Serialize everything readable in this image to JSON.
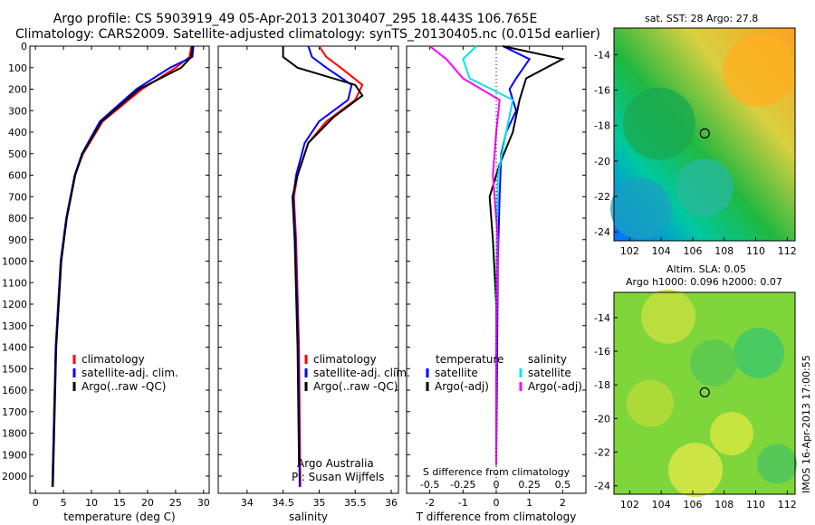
{
  "title_line1": "Argo profile: CS 5903919_49 05-Apr-2013 20130407_295 18.443S 106.765E",
  "title_line2": "Climatology: CARS2009. Satellite-adjusted climatology: synTS_20130405.nc (0.015d earlier)",
  "sst_title": "sat. SST: 28 Argo: 27.8",
  "sla_title1": "Altim. SLA: 0.05",
  "sla_title2": "Argo h1000: 0.096 h2000: 0.07",
  "footer_stamp": "IMOS 16-Apr-2013 17:00:55",
  "credit1": "Argo Australia",
  "credit2": "PI: Susan Wijffels",
  "colors": {
    "clim": "#ff0000",
    "sat": "#0000ff",
    "argo": "#000000",
    "sal_sat": "#00e5e5",
    "sal_argo": "#ff00ff"
  },
  "chart_data": [
    {
      "type": "line",
      "xlabel": "temperature (deg C)",
      "ylabel": "",
      "xlim": [
        -1,
        31
      ],
      "ylim": [
        2080,
        0
      ],
      "xticks": [
        0,
        5,
        10,
        15,
        20,
        25,
        30
      ],
      "yticks": [
        0,
        100,
        200,
        300,
        400,
        500,
        600,
        700,
        800,
        900,
        1000,
        1100,
        1200,
        1300,
        1400,
        1500,
        1600,
        1700,
        1800,
        1900,
        2000
      ],
      "series": [
        {
          "name": "climatology",
          "color": "#ff0000",
          "x": [
            27.8,
            27.5,
            25,
            19,
            12,
            8.5,
            7,
            5.5,
            4.5,
            3.6,
            3
          ],
          "y": [
            0,
            50,
            100,
            200,
            350,
            500,
            600,
            800,
            1000,
            1400,
            2050
          ]
        },
        {
          "name": "satellite-adj. clim.",
          "color": "#0000ff",
          "x": [
            28.2,
            28,
            24,
            18,
            11.5,
            8.3,
            7,
            5.5,
            4.5,
            3.6,
            3
          ],
          "y": [
            0,
            50,
            100,
            200,
            350,
            500,
            600,
            800,
            1000,
            1400,
            2050
          ]
        },
        {
          "name": "Argo(..raw -QC)",
          "color": "#000000",
          "x": [
            28,
            27.8,
            26,
            18.5,
            11.8,
            8.4,
            7.1,
            5.6,
            4.6,
            3.7,
            3.1
          ],
          "y": [
            0,
            50,
            100,
            200,
            350,
            500,
            600,
            800,
            1000,
            1400,
            2050
          ]
        }
      ],
      "legend": [
        "climatology",
        "satellite-adj. clim.",
        "Argo(..raw -QC)"
      ]
    },
    {
      "type": "line",
      "xlabel": "salinity",
      "ylabel": "",
      "xlim": [
        33.6,
        36.1
      ],
      "ylim": [
        2080,
        0
      ],
      "xticks": [
        34,
        34.5,
        35,
        35.5,
        36
      ],
      "series": [
        {
          "name": "climatology",
          "color": "#ff0000",
          "x": [
            35,
            35.1,
            35.3,
            35.6,
            35.5,
            35.1,
            34.85,
            34.7,
            34.65,
            34.68,
            34.72,
            34.74
          ],
          "y": [
            0,
            50,
            100,
            180,
            250,
            350,
            450,
            600,
            700,
            900,
            1400,
            2050
          ]
        },
        {
          "name": "satellite-adj. clim.",
          "color": "#0000ff",
          "x": [
            34.85,
            34.9,
            35.1,
            35.45,
            35.4,
            35.0,
            34.8,
            34.68,
            34.64,
            34.67,
            34.71,
            34.73
          ],
          "y": [
            0,
            50,
            100,
            180,
            250,
            350,
            450,
            600,
            700,
            900,
            1400,
            2050
          ]
        },
        {
          "name": "Argo(..raw -QC)",
          "color": "#000000",
          "x": [
            34.5,
            34.5,
            34.7,
            35.5,
            35.6,
            35.2,
            34.85,
            34.7,
            34.63,
            34.66,
            34.7,
            34.72
          ],
          "y": [
            0,
            50,
            100,
            180,
            230,
            330,
            450,
            600,
            700,
            900,
            1400,
            1950
          ]
        }
      ],
      "legend": [
        "climatology",
        "satellite-adj. clim.",
        "Argo(..raw -QC)"
      ],
      "credits": [
        "Argo Australia",
        "PI: Susan Wijffels"
      ]
    },
    {
      "type": "line",
      "xlabel": "T difference from climatology",
      "x2label": "S difference from climatology",
      "xlim": [
        -2.7,
        2.7
      ],
      "ylim": [
        2080,
        0
      ],
      "xticks": [
        -2,
        -1,
        0,
        1,
        2
      ],
      "x2ticks": [
        -0.5,
        -0.25,
        0,
        0.25,
        0.5
      ],
      "series": [
        {
          "name": "temperature satellite",
          "color": "#0000ff",
          "x": [
            0.2,
            1.0,
            0.6,
            0.4,
            0.6,
            0.3,
            0.15,
            0.1,
            0.05,
            0
          ],
          "y": [
            0,
            60,
            150,
            200,
            300,
            400,
            500,
            700,
            1000,
            1950
          ]
        },
        {
          "name": "temperature Argo(-adj)",
          "color": "#000000",
          "x": [
            0.2,
            2.0,
            0.9,
            0.7,
            0.5,
            0.1,
            -0.2,
            -0.1,
            0,
            0
          ],
          "y": [
            0,
            60,
            150,
            250,
            400,
            550,
            700,
            900,
            1200,
            1950
          ]
        },
        {
          "name": "salinity satellite",
          "color": "#00e5e5",
          "x": [
            -0.6,
            -1.0,
            -0.8,
            0.5,
            0.3,
            0.05,
            0.02,
            0,
            0
          ],
          "y": [
            0,
            60,
            150,
            250,
            400,
            600,
            900,
            1400,
            1950
          ]
        },
        {
          "name": "salinity Argo(-adj)",
          "color": "#ff00ff",
          "x": [
            -2.0,
            -1.5,
            -1.0,
            0.1,
            0.0,
            -0.1,
            0.05,
            0,
            0
          ],
          "y": [
            0,
            60,
            150,
            250,
            400,
            600,
            900,
            1400,
            1950
          ]
        }
      ],
      "legend_headers": [
        "temperature",
        "salinity"
      ],
      "legend": [
        "satellite",
        "Argo(-adj)",
        "satellite",
        "Argo(-adj)"
      ]
    },
    {
      "type": "heatmap",
      "title": "sat. SST: 28 Argo: 27.8",
      "xlim": [
        101,
        112.5
      ],
      "ylim": [
        -24.5,
        -12.5
      ],
      "xticks": [
        102,
        104,
        106,
        108,
        110,
        112
      ],
      "yticks": [
        -14,
        -16,
        -18,
        -20,
        -22,
        -24
      ],
      "marker": {
        "lon": 106.765,
        "lat": -18.443
      }
    },
    {
      "type": "heatmap",
      "title": "Altim. SLA: 0.05",
      "xlim": [
        101,
        112.5
      ],
      "ylim": [
        -24.5,
        -12.5
      ],
      "xticks": [
        102,
        104,
        106,
        108,
        110,
        112
      ],
      "yticks": [
        -14,
        -16,
        -18,
        -20,
        -22,
        -24
      ],
      "marker": {
        "lon": 106.765,
        "lat": -18.443
      }
    }
  ]
}
